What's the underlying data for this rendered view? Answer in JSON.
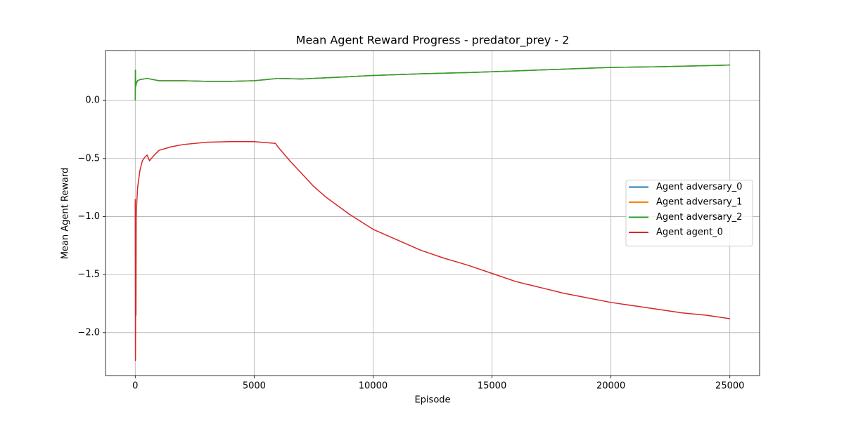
{
  "chart_data": {
    "type": "line",
    "title": "Mean Agent Reward Progress - predator_prey - 2",
    "xlabel": "Episode",
    "ylabel": "Mean Agent Reward",
    "xlim": [
      -1250,
      26250
    ],
    "ylim": [
      -2.37,
      0.43
    ],
    "xticks": [
      0,
      5000,
      10000,
      15000,
      20000,
      25000
    ],
    "yticks": [
      {
        "value": 0,
        "label": "0.0"
      },
      {
        "value": -0.5,
        "label": "−0.5"
      },
      {
        "value": -1.0,
        "label": "−1.0"
      },
      {
        "value": -1.5,
        "label": "−1.5"
      },
      {
        "value": -2.0,
        "label": "−2.0"
      }
    ],
    "grid": true,
    "legend": "center right",
    "series": [
      {
        "name": "Agent adversary_0",
        "color": "#1f77b4",
        "x": [
          0,
          10,
          20,
          50,
          100,
          200,
          500,
          1000,
          1500,
          2000,
          3000,
          4000,
          5000,
          6000,
          7000,
          8000,
          9000,
          10000,
          12000,
          14000,
          16000,
          18000,
          20000,
          22000,
          24000,
          25000
        ],
        "values": [
          0.0,
          0.26,
          0.12,
          0.15,
          0.17,
          0.18,
          0.19,
          0.17,
          0.17,
          0.17,
          0.165,
          0.165,
          0.17,
          0.19,
          0.185,
          0.195,
          0.205,
          0.215,
          0.23,
          0.24,
          0.255,
          0.27,
          0.285,
          0.29,
          0.3,
          0.305
        ]
      },
      {
        "name": "Agent adversary_1",
        "color": "#ff7f0e",
        "x": [
          0,
          10,
          20,
          50,
          100,
          200,
          500,
          1000,
          1500,
          2000,
          3000,
          4000,
          5000,
          6000,
          7000,
          8000,
          9000,
          10000,
          12000,
          14000,
          16000,
          18000,
          20000,
          22000,
          24000,
          25000
        ],
        "values": [
          0.0,
          0.26,
          0.12,
          0.15,
          0.17,
          0.18,
          0.19,
          0.17,
          0.17,
          0.17,
          0.165,
          0.165,
          0.17,
          0.19,
          0.185,
          0.195,
          0.205,
          0.215,
          0.23,
          0.24,
          0.255,
          0.27,
          0.285,
          0.29,
          0.3,
          0.305
        ]
      },
      {
        "name": "Agent adversary_2",
        "color": "#2ca02c",
        "x": [
          0,
          10,
          20,
          50,
          100,
          200,
          500,
          1000,
          1500,
          2000,
          3000,
          4000,
          5000,
          6000,
          7000,
          8000,
          9000,
          10000,
          12000,
          14000,
          16000,
          18000,
          20000,
          22000,
          24000,
          25000
        ],
        "values": [
          0.0,
          0.26,
          0.12,
          0.15,
          0.17,
          0.18,
          0.19,
          0.17,
          0.17,
          0.17,
          0.165,
          0.165,
          0.17,
          0.19,
          0.185,
          0.195,
          0.205,
          0.215,
          0.23,
          0.24,
          0.255,
          0.27,
          0.285,
          0.29,
          0.3,
          0.305
        ]
      },
      {
        "name": "Agent agent_0",
        "color": "#d62728",
        "x": [
          0,
          10,
          20,
          30,
          40,
          60,
          100,
          200,
          300,
          400,
          500,
          600,
          800,
          1000,
          1500,
          2000,
          3000,
          4000,
          5000,
          5900,
          6000,
          6500,
          7000,
          7500,
          8000,
          9000,
          10000,
          11000,
          12000,
          13000,
          14000,
          15000,
          16000,
          17000,
          18000,
          19000,
          20000,
          21000,
          22000,
          23000,
          24000,
          25000
        ],
        "values": [
          -0.85,
          -2.24,
          -1.3,
          -1.85,
          -1.0,
          -0.9,
          -0.75,
          -0.6,
          -0.52,
          -0.49,
          -0.47,
          -0.52,
          -0.47,
          -0.43,
          -0.4,
          -0.38,
          -0.36,
          -0.355,
          -0.355,
          -0.37,
          -0.4,
          -0.52,
          -0.63,
          -0.74,
          -0.83,
          -0.98,
          -1.11,
          -1.2,
          -1.29,
          -1.36,
          -1.42,
          -1.49,
          -1.56,
          -1.61,
          -1.66,
          -1.7,
          -1.74,
          -1.77,
          -1.8,
          -1.83,
          -1.85,
          -1.88
        ]
      }
    ]
  }
}
